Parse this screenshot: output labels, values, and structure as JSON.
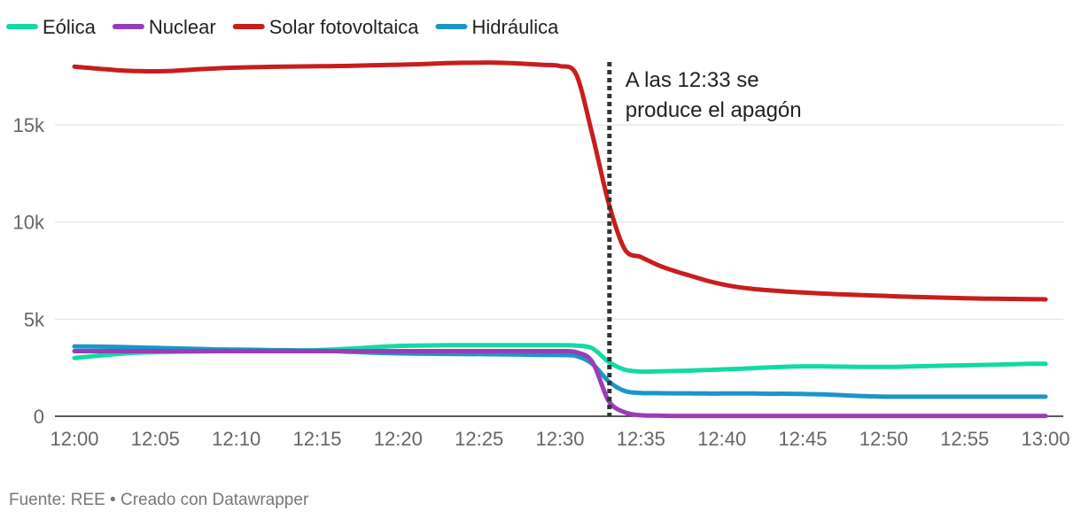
{
  "chart_data": {
    "type": "line",
    "x": [
      "12:00",
      "12:01",
      "12:02",
      "12:03",
      "12:04",
      "12:05",
      "12:06",
      "12:07",
      "12:08",
      "12:09",
      "12:10",
      "12:11",
      "12:12",
      "12:13",
      "12:14",
      "12:15",
      "12:16",
      "12:17",
      "12:18",
      "12:19",
      "12:20",
      "12:21",
      "12:22",
      "12:23",
      "12:24",
      "12:25",
      "12:26",
      "12:27",
      "12:28",
      "12:29",
      "12:30",
      "12:31",
      "12:32",
      "12:33",
      "12:34",
      "12:35",
      "12:36",
      "12:37",
      "12:38",
      "12:39",
      "12:40",
      "12:41",
      "12:42",
      "12:43",
      "12:44",
      "12:45",
      "12:46",
      "12:47",
      "12:48",
      "12:49",
      "12:50",
      "12:51",
      "12:52",
      "12:53",
      "12:54",
      "12:55",
      "12:56",
      "12:57",
      "12:58",
      "12:59",
      "13:00"
    ],
    "x_ticks": [
      "12:00",
      "12:05",
      "12:10",
      "12:15",
      "12:20",
      "12:25",
      "12:30",
      "12:35",
      "12:40",
      "12:45",
      "12:50",
      "12:55",
      "13:00"
    ],
    "series": [
      {
        "name": "Eólica",
        "color": "#14d9a4",
        "values": [
          3000,
          3080,
          3160,
          3230,
          3280,
          3300,
          3320,
          3330,
          3340,
          3350,
          3360,
          3365,
          3370,
          3380,
          3390,
          3400,
          3440,
          3480,
          3530,
          3580,
          3620,
          3640,
          3650,
          3660,
          3660,
          3660,
          3660,
          3660,
          3660,
          3660,
          3660,
          3640,
          3500,
          2800,
          2400,
          2300,
          2310,
          2330,
          2350,
          2380,
          2410,
          2440,
          2480,
          2520,
          2550,
          2570,
          2570,
          2560,
          2550,
          2540,
          2540,
          2550,
          2570,
          2590,
          2610,
          2620,
          2640,
          2660,
          2680,
          2700,
          2700
        ]
      },
      {
        "name": "Nuclear",
        "color": "#9b3cb7",
        "values": [
          3350,
          3350,
          3350,
          3350,
          3350,
          3350,
          3350,
          3350,
          3350,
          3350,
          3350,
          3350,
          3350,
          3350,
          3350,
          3350,
          3350,
          3350,
          3350,
          3350,
          3350,
          3350,
          3350,
          3350,
          3350,
          3350,
          3350,
          3350,
          3350,
          3350,
          3350,
          3300,
          2800,
          800,
          200,
          50,
          30,
          20,
          20,
          20,
          20,
          20,
          20,
          20,
          20,
          20,
          20,
          20,
          20,
          20,
          20,
          20,
          20,
          20,
          20,
          20,
          20,
          20,
          20,
          20,
          20
        ]
      },
      {
        "name": "Solar fotovoltaica",
        "color": "#c91d1d",
        "values": [
          18000,
          17930,
          17860,
          17800,
          17770,
          17760,
          17780,
          17830,
          17880,
          17920,
          17950,
          17970,
          17990,
          18000,
          18010,
          18020,
          18030,
          18040,
          18060,
          18080,
          18100,
          18120,
          18150,
          18180,
          18200,
          18210,
          18210,
          18180,
          18140,
          18090,
          18030,
          17600,
          14500,
          11000,
          8600,
          8200,
          7800,
          7500,
          7250,
          7000,
          6800,
          6650,
          6550,
          6480,
          6420,
          6370,
          6330,
          6290,
          6260,
          6230,
          6200,
          6170,
          6140,
          6120,
          6100,
          6080,
          6060,
          6050,
          6040,
          6030,
          6020
        ]
      },
      {
        "name": "Hidráulica",
        "color": "#1b96c8",
        "values": [
          3600,
          3590,
          3580,
          3560,
          3540,
          3520,
          3500,
          3480,
          3460,
          3440,
          3430,
          3420,
          3410,
          3400,
          3390,
          3380,
          3350,
          3320,
          3290,
          3260,
          3240,
          3230,
          3220,
          3210,
          3200,
          3200,
          3190,
          3180,
          3170,
          3160,
          3150,
          3100,
          2700,
          1800,
          1300,
          1200,
          1190,
          1180,
          1180,
          1170,
          1170,
          1170,
          1170,
          1160,
          1160,
          1150,
          1130,
          1100,
          1060,
          1030,
          1010,
          1010,
          1010,
          1010,
          1010,
          1010,
          1010,
          1010,
          1010,
          1010,
          1010
        ]
      }
    ],
    "yticks": [
      0,
      5000,
      10000,
      15000
    ],
    "ytick_labels": [
      "0",
      "5k",
      "10k",
      "15k"
    ],
    "ylim": [
      0,
      18500
    ],
    "grid": true,
    "legend_position": "top-left",
    "annotation": {
      "x": "12:33",
      "lines": [
        "A las 12:33 se",
        "produce el apagón"
      ]
    },
    "title": "",
    "xlabel": "",
    "ylabel": ""
  },
  "footer": {
    "source": "Fuente: REE • Creado con Datawrapper"
  }
}
